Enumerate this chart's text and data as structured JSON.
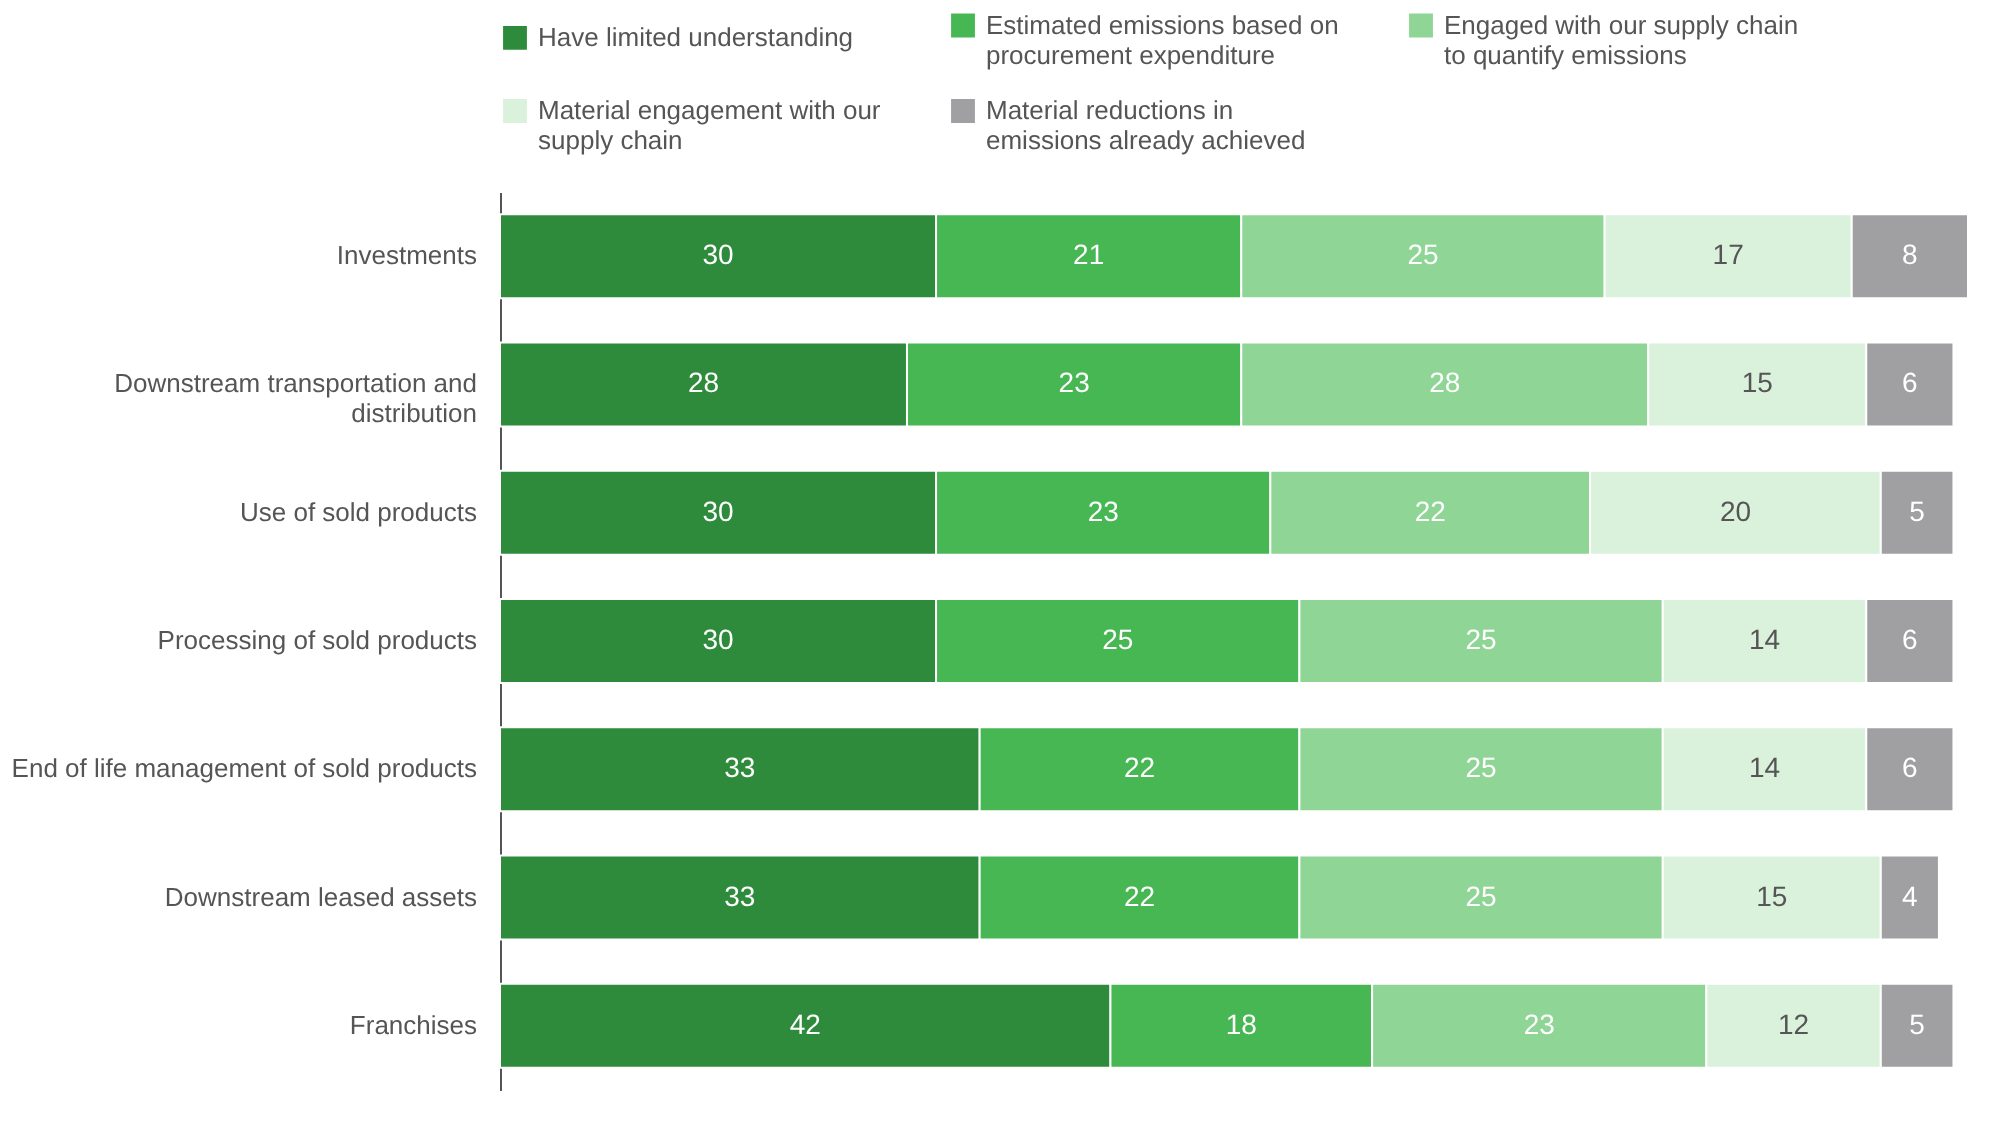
{
  "chart_data": {
    "type": "bar",
    "orientation": "horizontal",
    "stacked": true,
    "data_labels": true,
    "legend": "top",
    "grid": false,
    "categories": [
      "Investments",
      "Downstream transportation and distribution",
      "Use of sold products",
      "Processing of sold products",
      "End of life management of sold products",
      "Downstream leased assets",
      "Franchises"
    ],
    "series": [
      {
        "name": "Have limited understanding",
        "color": "#2e8b3c",
        "values": [
          30,
          28,
          30,
          30,
          33,
          33,
          42
        ]
      },
      {
        "name": "Estimated emissions based on procurement expenditure",
        "color": "#46b753",
        "values": [
          21,
          23,
          23,
          25,
          22,
          22,
          18
        ]
      },
      {
        "name": "Engaged with our supply chain to quantify emissions",
        "color": "#8fd595",
        "values": [
          25,
          28,
          22,
          25,
          25,
          25,
          23
        ]
      },
      {
        "name": "Material engagement with our supply chain",
        "color": "#daf1db",
        "values": [
          17,
          15,
          20,
          14,
          14,
          15,
          12
        ]
      },
      {
        "name": "Material reductions in emissions already achieved",
        "color": "#a0a0a3",
        "values": [
          8,
          6,
          5,
          6,
          6,
          4,
          5
        ]
      }
    ]
  }
}
